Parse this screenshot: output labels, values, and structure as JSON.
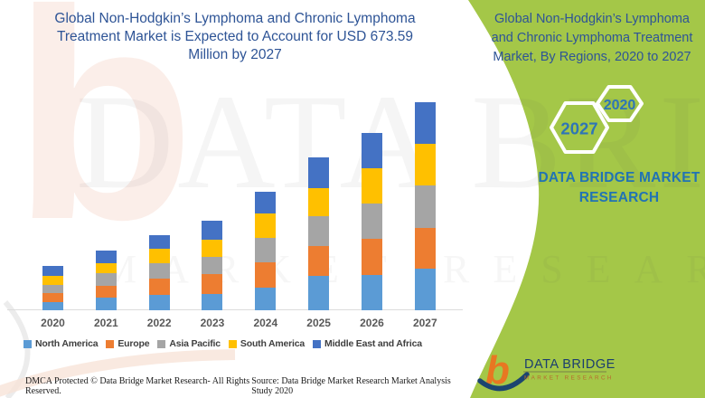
{
  "header": {
    "title_lines": [
      "Global Non-Hodgkin’s Lymphoma and Chronic Lymphoma",
      "Treatment Market is Expected to Account for USD 673.59",
      "Million by 2027"
    ]
  },
  "panel": {
    "bg_color": "#A4C748",
    "title_lines": [
      "Global Non-Hodgkin’s Lymphoma",
      "and Chronic Lymphoma Treatment",
      "Market, By Regions, 2020 to 2027"
    ],
    "hexagons": [
      {
        "label": "2020"
      },
      {
        "label": "2027"
      }
    ],
    "brand_lines": [
      "DATA BRIDGE MARKET",
      "RESEARCH"
    ],
    "logo": {
      "monogram": "b",
      "name": "DATA BRIDGE",
      "tagline": "MARKET RESEARCH"
    }
  },
  "watermark": {
    "line1": "DATA BRIDGE",
    "line2": "MARKET RESEARCH",
    "letter_b": "b"
  },
  "chart_data": {
    "type": "bar",
    "stacked": true,
    "title": "Global Non-Hodgkin’s Lymphoma and Chronic Lymphoma Treatment Market, By Regions, 2020 to 2027",
    "unit": "USD Million",
    "annotation": "Market expected to account for USD 673.59 Million by 2027",
    "grid": false,
    "legend_position": "bottom",
    "xlabel": "",
    "ylabel": "",
    "categories": [
      "2020",
      "2021",
      "2022",
      "2023",
      "2024",
      "2025",
      "2026",
      "2027"
    ],
    "series": [
      {
        "name": "North America",
        "color": "#5B9BD5",
        "values": [
          27,
          41,
          50,
          53,
          73,
          111,
          114,
          134.8
        ]
      },
      {
        "name": "Europe",
        "color": "#ED7D31",
        "values": [
          28,
          38,
          53,
          64,
          82,
          97,
          117,
          131.8
        ]
      },
      {
        "name": "Asia Pacific",
        "color": "#A5A5A5",
        "values": [
          27,
          41,
          50,
          56,
          79,
          97,
          114,
          137.7
        ]
      },
      {
        "name": "South America",
        "color": "#FFC000",
        "values": [
          29,
          32,
          47,
          56,
          79,
          91,
          114,
          134.8
        ]
      },
      {
        "name": "Middle East and Africa",
        "color": "#4472C4",
        "values": [
          34,
          41,
          44,
          61,
          70,
          100,
          114,
          134.49
        ]
      }
    ],
    "totals": [
      145,
      193,
      244,
      290,
      383,
      496,
      573,
      673.59
    ]
  },
  "footer": {
    "left": "DMCA Protected © Data Bridge Market Research- All Rights Reserved.",
    "right": "Source: Data Bridge Market Research Market Analysis Study 2020"
  }
}
